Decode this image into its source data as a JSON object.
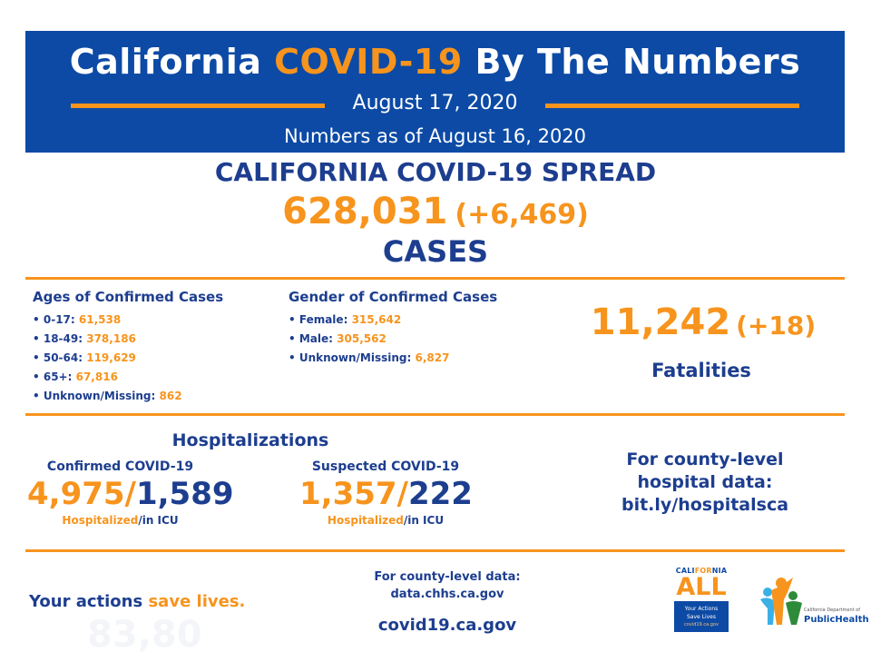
{
  "header": {
    "title_pre": "California ",
    "title_highlight": "COVID-19",
    "title_post": " By The Numbers",
    "date": "August 17, 2020",
    "as_of": "Numbers as of August 16, 2020"
  },
  "spread": {
    "title": "CALIFORNIA COVID-19 SPREAD",
    "cases": "628,031",
    "cases_delta": "(+6,469)",
    "cases_label": "CASES"
  },
  "ages": {
    "title": "Ages of Confirmed Cases",
    "items": [
      {
        "label": "0-17:",
        "value": "61,538"
      },
      {
        "label": "18-49:",
        "value": "378,186"
      },
      {
        "label": "50-64:",
        "value": "119,629"
      },
      {
        "label": "65+:",
        "value": "67,816"
      },
      {
        "label": "Unknown/Missing:",
        "value": "862"
      }
    ]
  },
  "gender": {
    "title": "Gender of Confirmed Cases",
    "items": [
      {
        "label": "Female:",
        "value": "315,642"
      },
      {
        "label": "Male:",
        "value": "305,562"
      },
      {
        "label": "Unknown/Missing:",
        "value": "6,827"
      }
    ]
  },
  "fatalities": {
    "count": "11,242",
    "delta": "(+18)",
    "label": "Fatalities"
  },
  "hospitalizations": {
    "title": "Hospitalizations",
    "confirmed": {
      "title": "Confirmed COVID-19",
      "hospitalized": "4,975/",
      "icu": "1,589",
      "hosp_label": "Hospitalized",
      "icu_label": "/in ICU"
    },
    "suspected": {
      "title": "Suspected COVID-19",
      "hospitalized": "1,357/",
      "icu": "222",
      "hosp_label": "Hospitalized",
      "icu_label": "/in ICU"
    },
    "county_line1": "For county-level",
    "county_line2": "hospital data:",
    "county_link": "bit.ly/hospitalsca"
  },
  "footer": {
    "actions_pre": "Your actions ",
    "actions_highlight": "save lives.",
    "ghost_text": "83,80",
    "county_data_label": "For county-level data:",
    "county_data_link": "data.chhs.ca.gov",
    "covid_link": "covid19.ca.gov"
  },
  "logos": {
    "ca_pre": "CALI",
    "ca_highlight": "FOR",
    "ca_post": "NIA",
    "all": "ALL",
    "box_line1": "Your Actions",
    "box_line2": "Save Lives",
    "box_link": "covid19.ca.gov",
    "cdph_top": "California Department of",
    "cdph_name": "PublicHealth"
  },
  "colors": {
    "brand_blue": "#0c4aa5",
    "text_blue": "#1d3e8f",
    "accent_orange": "#f7941d"
  }
}
